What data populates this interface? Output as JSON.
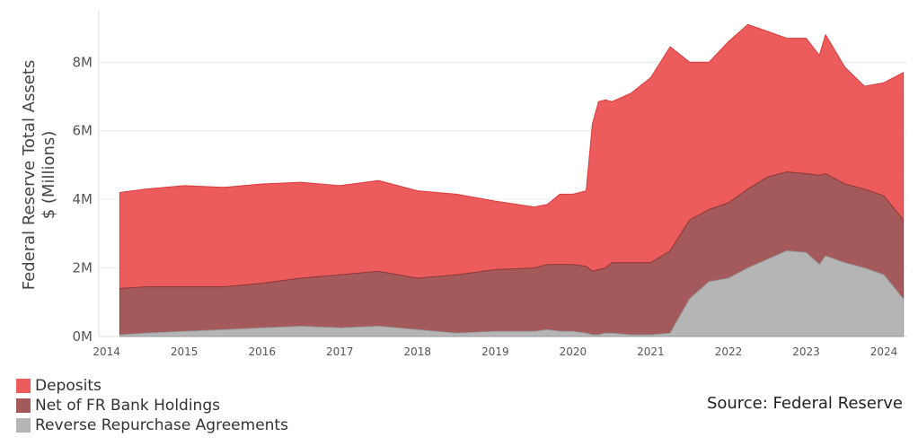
{
  "chart_data": {
    "type": "area",
    "ylabel": "Federal Reserve Total Assets",
    "ylabel_units": "$ (Millions)",
    "source": "Source: Federal Reserve",
    "x_ticks": [
      "2014",
      "2015",
      "2016",
      "2017",
      "2018",
      "2019",
      "2020",
      "2021",
      "2022",
      "2023",
      "2024"
    ],
    "y_ticks": [
      {
        "v": 0,
        "label": "0M"
      },
      {
        "v": 2,
        "label": "2M"
      },
      {
        "v": 4,
        "label": "4M"
      },
      {
        "v": 6,
        "label": "6M"
      },
      {
        "v": 8,
        "label": "8M"
      }
    ],
    "xlim": [
      2013.9,
      2024.3
    ],
    "ylim": [
      0,
      9.5
    ],
    "grid": "horizontal",
    "legend_position": "bottom-left",
    "stacked": true,
    "x": [
      2014.17,
      2014.5,
      2015.0,
      2015.5,
      2016.0,
      2016.5,
      2017.0,
      2017.5,
      2018.0,
      2018.5,
      2019.0,
      2019.5,
      2019.67,
      2019.83,
      2020.0,
      2020.17,
      2020.25,
      2020.33,
      2020.42,
      2020.5,
      2020.75,
      2021.0,
      2021.25,
      2021.5,
      2021.75,
      2022.0,
      2022.25,
      2022.5,
      2022.75,
      2023.0,
      2023.17,
      2023.25,
      2023.5,
      2023.75,
      2024.0,
      2024.25
    ],
    "series": [
      {
        "name": "Deposits",
        "color": "#ec5c5c",
        "values": [
          2.8,
          2.85,
          2.95,
          2.9,
          2.9,
          2.8,
          2.6,
          2.65,
          2.55,
          2.35,
          2.0,
          1.78,
          1.75,
          2.05,
          2.05,
          2.2,
          4.3,
          4.9,
          4.9,
          4.7,
          4.95,
          5.4,
          5.95,
          4.6,
          4.3,
          4.7,
          4.8,
          4.25,
          3.9,
          3.95,
          3.5,
          4.05,
          3.4,
          3.0,
          3.3,
          4.3
        ]
      },
      {
        "name": "Net of FR Bank Holdings",
        "color": "#a45a5a",
        "values": [
          1.35,
          1.35,
          1.3,
          1.25,
          1.3,
          1.4,
          1.55,
          1.6,
          1.5,
          1.7,
          1.8,
          1.85,
          1.9,
          1.95,
          1.95,
          1.95,
          1.85,
          1.9,
          1.9,
          2.05,
          2.1,
          2.1,
          2.4,
          2.3,
          2.1,
          2.2,
          2.3,
          2.4,
          2.3,
          2.3,
          2.6,
          2.4,
          2.3,
          2.3,
          2.3,
          2.3
        ]
      },
      {
        "name": "Reverse Repurchase Agreements",
        "color": "#b5b5b5",
        "values": [
          0.05,
          0.1,
          0.15,
          0.2,
          0.25,
          0.3,
          0.25,
          0.3,
          0.2,
          0.1,
          0.15,
          0.15,
          0.2,
          0.15,
          0.15,
          0.1,
          0.05,
          0.05,
          0.1,
          0.1,
          0.05,
          0.05,
          0.1,
          1.1,
          1.6,
          1.7,
          2.0,
          2.25,
          2.5,
          2.45,
          2.1,
          2.35,
          2.15,
          2.0,
          1.8,
          1.1
        ]
      }
    ]
  }
}
